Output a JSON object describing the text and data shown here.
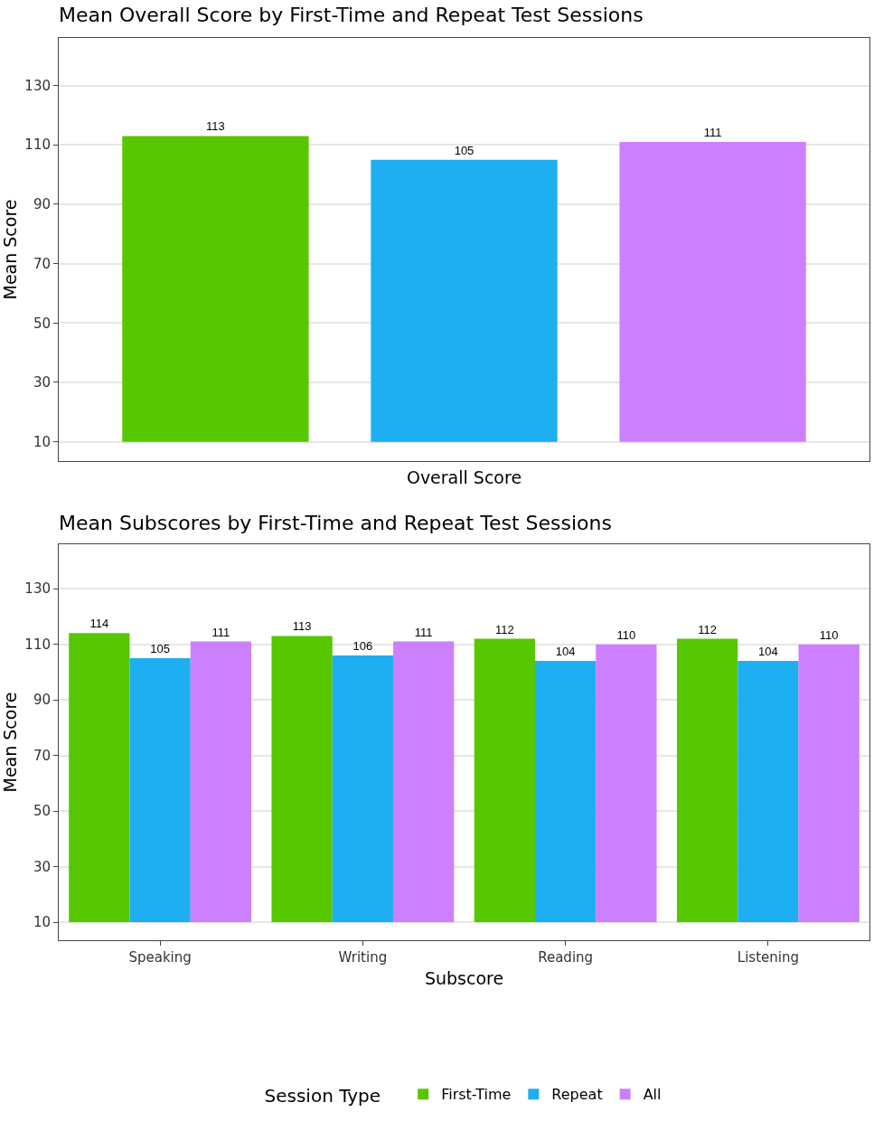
{
  "chart_data": [
    {
      "type": "bar",
      "title": "Mean Overall Score by First-Time and Repeat Test Sessions",
      "xlabel": "Overall Score",
      "ylabel": "Mean Score",
      "categories": [
        null
      ],
      "ylim": [
        3.5,
        146
      ],
      "yticks": [
        10,
        30,
        50,
        70,
        90,
        110,
        130
      ],
      "grid": "y",
      "legend": false,
      "series": [
        {
          "color": "#56c700",
          "base": [
            10
          ],
          "values": [
            103
          ],
          "value_labels": [
            "113"
          ]
        },
        {
          "color": "#1eaef2",
          "base": [
            10
          ],
          "values": [
            95
          ],
          "value_labels": [
            "105"
          ]
        },
        {
          "color": "#cc80ff",
          "base": [
            10
          ],
          "values": [
            101
          ],
          "value_labels": [
            "111"
          ]
        }
      ]
    },
    {
      "type": "bar",
      "title": "Mean Subscores by First-Time and Repeat Test Sessions",
      "xlabel": "Subscore",
      "ylabel": "Mean Score",
      "legend_title": "Session Type",
      "categories": [
        "Speaking",
        "Writing",
        "Reading",
        "Listening"
      ],
      "ylim": [
        3.5,
        146
      ],
      "yticks": [
        10,
        30,
        50,
        70,
        90,
        110,
        130
      ],
      "grid": "y",
      "legend": "bottom",
      "series": [
        {
          "name": "First-Time",
          "color": "#56c700",
          "base": [
            10,
            10,
            10,
            10
          ],
          "values": [
            104,
            103,
            102,
            102
          ],
          "value_labels": [
            "114",
            "113",
            "112",
            "112"
          ]
        },
        {
          "name": "Repeat",
          "color": "#1eaef2",
          "base": [
            10,
            10,
            10,
            10
          ],
          "values": [
            95,
            96,
            94,
            94
          ],
          "value_labels": [
            "105",
            "106",
            "104",
            "104"
          ]
        },
        {
          "name": "All",
          "color": "#cc80ff",
          "base": [
            10,
            10,
            10,
            10
          ],
          "values": [
            101,
            101,
            100,
            100
          ],
          "value_labels": [
            "111",
            "111",
            "110",
            "110"
          ]
        }
      ]
    }
  ]
}
